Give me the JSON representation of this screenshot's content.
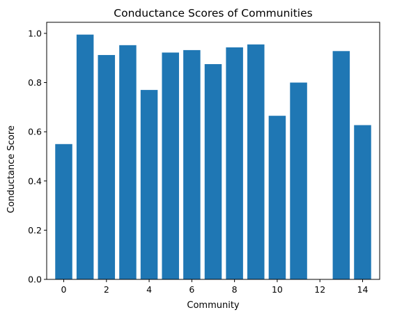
{
  "chart_data": {
    "type": "bar",
    "title": "Conductance Scores of Communities",
    "xlabel": "Community",
    "ylabel": "Conductance Score",
    "x": [
      0,
      1,
      2,
      3,
      4,
      5,
      6,
      7,
      8,
      9,
      10,
      11,
      12,
      13,
      14
    ],
    "values": [
      0.55,
      0.995,
      0.912,
      0.952,
      0.77,
      0.922,
      0.932,
      0.875,
      0.943,
      0.955,
      0.665,
      0.8,
      0.0,
      0.928,
      0.627
    ],
    "xticks": [
      0,
      2,
      4,
      6,
      8,
      10,
      12,
      14
    ],
    "yticks": [
      0.0,
      0.2,
      0.4,
      0.6,
      0.8,
      1.0
    ],
    "ytick_labels": [
      "0.0",
      "0.2",
      "0.4",
      "0.6",
      "0.8",
      "1.0"
    ],
    "xlim": [
      -0.8,
      14.8
    ],
    "ylim": [
      0,
      1.045
    ],
    "bar_color": "#1f77b4",
    "grid": false,
    "legend": "none"
  }
}
